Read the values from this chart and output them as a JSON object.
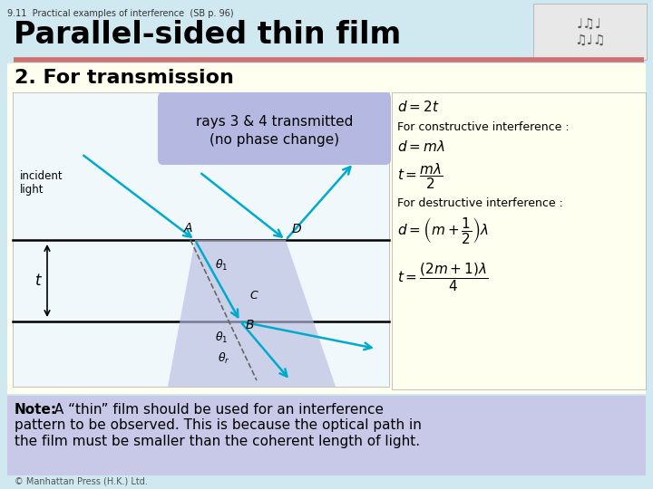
{
  "bg_color": "#d0e8f0",
  "title_small": "9.11  Practical examples of interference  (SB p. 96)",
  "title_main": "Parallel-sided thin film",
  "subtitle": "2. For transmission",
  "diagram_bg": "#fffff0",
  "diag_inner_bg": "#f0f8f0",
  "note_bg": "#c8c8e8",
  "callout_bg": "#b8b8e0",
  "ray_color": "#00aacc",
  "dashed_color": "#666666",
  "callout_text_line1": "rays 3 & 4 transmitted",
  "callout_text_line2": "(no phase change)",
  "note_text_bold": "Note:",
  "note_text": " A “thin” film should be used for an interference\npattern to be observed. This is because the optical path in\nthe film must be smaller than the coherent length of light.",
  "copyright": "© Manhattan Press (H.K.) Ltd."
}
